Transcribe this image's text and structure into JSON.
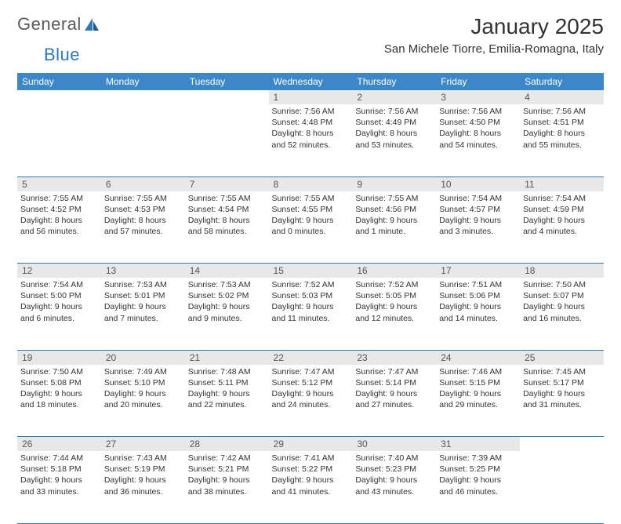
{
  "logo": {
    "text1": "General",
    "text2": "Blue"
  },
  "title": "January 2025",
  "location": "San Michele Tiorre, Emilia-Romagna, Italy",
  "colors": {
    "header_bg": "#3b87c8",
    "header_text": "#ffffff",
    "daynum_bg": "#e8e8e8",
    "daynum_text": "#555555",
    "border": "#2f79b5",
    "text": "#333333",
    "logo_gray": "#5a5a5a",
    "logo_blue": "#2f79b5"
  },
  "weekdays": [
    "Sunday",
    "Monday",
    "Tuesday",
    "Wednesday",
    "Thursday",
    "Friday",
    "Saturday"
  ],
  "weeks": [
    [
      null,
      null,
      null,
      {
        "n": "1",
        "sr": "7:56 AM",
        "ss": "4:48 PM",
        "dl": "8 hours and 52 minutes."
      },
      {
        "n": "2",
        "sr": "7:56 AM",
        "ss": "4:49 PM",
        "dl": "8 hours and 53 minutes."
      },
      {
        "n": "3",
        "sr": "7:56 AM",
        "ss": "4:50 PM",
        "dl": "8 hours and 54 minutes."
      },
      {
        "n": "4",
        "sr": "7:56 AM",
        "ss": "4:51 PM",
        "dl": "8 hours and 55 minutes."
      }
    ],
    [
      {
        "n": "5",
        "sr": "7:55 AM",
        "ss": "4:52 PM",
        "dl": "8 hours and 56 minutes."
      },
      {
        "n": "6",
        "sr": "7:55 AM",
        "ss": "4:53 PM",
        "dl": "8 hours and 57 minutes."
      },
      {
        "n": "7",
        "sr": "7:55 AM",
        "ss": "4:54 PM",
        "dl": "8 hours and 58 minutes."
      },
      {
        "n": "8",
        "sr": "7:55 AM",
        "ss": "4:55 PM",
        "dl": "9 hours and 0 minutes."
      },
      {
        "n": "9",
        "sr": "7:55 AM",
        "ss": "4:56 PM",
        "dl": "9 hours and 1 minute."
      },
      {
        "n": "10",
        "sr": "7:54 AM",
        "ss": "4:57 PM",
        "dl": "9 hours and 3 minutes."
      },
      {
        "n": "11",
        "sr": "7:54 AM",
        "ss": "4:59 PM",
        "dl": "9 hours and 4 minutes."
      }
    ],
    [
      {
        "n": "12",
        "sr": "7:54 AM",
        "ss": "5:00 PM",
        "dl": "9 hours and 6 minutes."
      },
      {
        "n": "13",
        "sr": "7:53 AM",
        "ss": "5:01 PM",
        "dl": "9 hours and 7 minutes."
      },
      {
        "n": "14",
        "sr": "7:53 AM",
        "ss": "5:02 PM",
        "dl": "9 hours and 9 minutes."
      },
      {
        "n": "15",
        "sr": "7:52 AM",
        "ss": "5:03 PM",
        "dl": "9 hours and 11 minutes."
      },
      {
        "n": "16",
        "sr": "7:52 AM",
        "ss": "5:05 PM",
        "dl": "9 hours and 12 minutes."
      },
      {
        "n": "17",
        "sr": "7:51 AM",
        "ss": "5:06 PM",
        "dl": "9 hours and 14 minutes."
      },
      {
        "n": "18",
        "sr": "7:50 AM",
        "ss": "5:07 PM",
        "dl": "9 hours and 16 minutes."
      }
    ],
    [
      {
        "n": "19",
        "sr": "7:50 AM",
        "ss": "5:08 PM",
        "dl": "9 hours and 18 minutes."
      },
      {
        "n": "20",
        "sr": "7:49 AM",
        "ss": "5:10 PM",
        "dl": "9 hours and 20 minutes."
      },
      {
        "n": "21",
        "sr": "7:48 AM",
        "ss": "5:11 PM",
        "dl": "9 hours and 22 minutes."
      },
      {
        "n": "22",
        "sr": "7:47 AM",
        "ss": "5:12 PM",
        "dl": "9 hours and 24 minutes."
      },
      {
        "n": "23",
        "sr": "7:47 AM",
        "ss": "5:14 PM",
        "dl": "9 hours and 27 minutes."
      },
      {
        "n": "24",
        "sr": "7:46 AM",
        "ss": "5:15 PM",
        "dl": "9 hours and 29 minutes."
      },
      {
        "n": "25",
        "sr": "7:45 AM",
        "ss": "5:17 PM",
        "dl": "9 hours and 31 minutes."
      }
    ],
    [
      {
        "n": "26",
        "sr": "7:44 AM",
        "ss": "5:18 PM",
        "dl": "9 hours and 33 minutes."
      },
      {
        "n": "27",
        "sr": "7:43 AM",
        "ss": "5:19 PM",
        "dl": "9 hours and 36 minutes."
      },
      {
        "n": "28",
        "sr": "7:42 AM",
        "ss": "5:21 PM",
        "dl": "9 hours and 38 minutes."
      },
      {
        "n": "29",
        "sr": "7:41 AM",
        "ss": "5:22 PM",
        "dl": "9 hours and 41 minutes."
      },
      {
        "n": "30",
        "sr": "7:40 AM",
        "ss": "5:23 PM",
        "dl": "9 hours and 43 minutes."
      },
      {
        "n": "31",
        "sr": "7:39 AM",
        "ss": "5:25 PM",
        "dl": "9 hours and 46 minutes."
      },
      null
    ]
  ],
  "labels": {
    "sunrise": "Sunrise:",
    "sunset": "Sunset:",
    "daylight": "Daylight:"
  }
}
